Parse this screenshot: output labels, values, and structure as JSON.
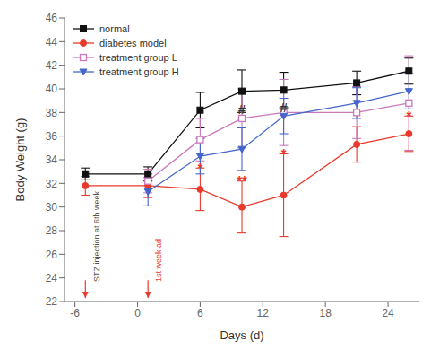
{
  "chart_data": {
    "type": "line",
    "title": "",
    "xlabel": "Days (d)",
    "ylabel": "Body Weight (g)",
    "xlim": [
      -7,
      27
    ],
    "ylim": [
      22,
      46
    ],
    "xticks": [
      -6,
      0,
      6,
      12,
      18,
      24
    ],
    "yticks": [
      22,
      24,
      26,
      28,
      30,
      32,
      34,
      36,
      38,
      40,
      42,
      44,
      46
    ],
    "grid": false,
    "legend": "upper left",
    "series": [
      {
        "name": "normal",
        "color": "#111111",
        "marker": "square",
        "x": [
          -5,
          1,
          6,
          10,
          14,
          21,
          26
        ],
        "values": [
          32.8,
          32.8,
          38.2,
          39.8,
          39.9,
          40.5,
          41.5
        ],
        "yerr": [
          0.5,
          0.6,
          1.5,
          1.8,
          1.5,
          1.0,
          1.1
        ]
      },
      {
        "name": "diabetes model",
        "color": "#e8392a",
        "marker": "circle",
        "x": [
          -5,
          1,
          6,
          10,
          14,
          21,
          26
        ],
        "values": [
          31.8,
          31.8,
          31.5,
          30.0,
          31.0,
          35.3,
          36.2
        ],
        "yerr": [
          0.8,
          1.0,
          1.8,
          2.2,
          3.5,
          1.5,
          1.5
        ]
      },
      {
        "name": "treatment group L",
        "color": "#cc77bb",
        "marker": "open_square",
        "x": [
          1,
          6,
          10,
          14,
          21,
          26
        ],
        "values": [
          32.2,
          35.7,
          37.5,
          38.0,
          38.0,
          38.8
        ],
        "yerr": [
          1.0,
          1.8,
          2.5,
          2.8,
          2.2,
          4.0
        ]
      },
      {
        "name": "treatment group H",
        "color": "#4466cc",
        "marker": "triangle_down",
        "x": [
          1,
          6,
          10,
          14,
          21,
          26
        ],
        "values": [
          31.3,
          34.3,
          34.9,
          37.7,
          38.8,
          39.8
        ],
        "yerr": [
          1.2,
          1.5,
          1.8,
          1.5,
          1.3,
          1.5
        ]
      }
    ],
    "annotations": [
      {
        "text": "*",
        "x": 6,
        "y": 33.4,
        "color": "#e8392a"
      },
      {
        "text": "**",
        "x": 10,
        "y": 32.3,
        "color": "#e8392a"
      },
      {
        "text": "*",
        "x": 14,
        "y": 34.6,
        "color": "#e8392a"
      },
      {
        "text": "*",
        "x": 26,
        "y": 37.8,
        "color": "#e8392a"
      },
      {
        "text": "#",
        "x": 10,
        "y": 38.3,
        "color": "#333333"
      },
      {
        "text": "#",
        "x": 14,
        "y": 38.5,
        "color": "#333333"
      },
      {
        "text": "STZ injection at 6th week",
        "x": -4.2,
        "y": 27.5,
        "color": "#555555",
        "arrow": {
          "x": -5,
          "y_from": 23.8,
          "y_to": 22.3,
          "color": "#e8392a"
        }
      },
      {
        "text": "1st week ad",
        "x": 1.8,
        "y": 25.5,
        "color": "#e8392a",
        "arrow": {
          "x": 1,
          "y_from": 23.8,
          "y_to": 22.3,
          "color": "#e8392a"
        }
      }
    ]
  }
}
